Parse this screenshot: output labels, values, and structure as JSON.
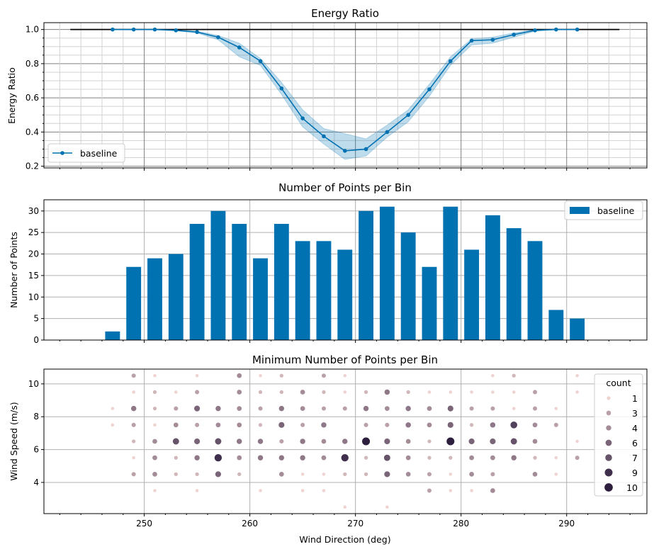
{
  "chart_data": [
    {
      "type": "line",
      "title": "Energy Ratio",
      "xlabel": "",
      "ylabel": "Energy Ratio",
      "xlim": [
        240.5,
        297.6
      ],
      "ylim": [
        0.19,
        1.04
      ],
      "yticks": [
        "0.2",
        "0.4",
        "0.6",
        "0.8",
        "1.0"
      ],
      "grid": "major+minor",
      "legend": {
        "position": "lower-left",
        "entries": [
          "baseline"
        ]
      },
      "reference_line": {
        "y": 1.0,
        "x_range": [
          243,
          295
        ],
        "color": "#000000"
      },
      "series": [
        {
          "name": "baseline",
          "color": "#0072b2",
          "x": [
            247,
            249,
            251,
            253,
            255,
            257,
            259,
            261,
            263,
            265,
            267,
            269,
            271,
            273,
            275,
            277,
            279,
            281,
            283,
            285,
            287,
            289,
            291
          ],
          "y": [
            1.0,
            1.0,
            1.0,
            0.995,
            0.985,
            0.955,
            0.895,
            0.815,
            0.655,
            0.48,
            0.375,
            0.29,
            0.3,
            0.4,
            0.5,
            0.65,
            0.815,
            0.935,
            0.94,
            0.97,
            0.995,
            1.0,
            1.0
          ],
          "ci_lower": [
            1.0,
            1.0,
            1.0,
            0.993,
            0.98,
            0.94,
            0.84,
            0.79,
            0.62,
            0.43,
            0.33,
            0.24,
            0.26,
            0.37,
            0.46,
            0.61,
            0.79,
            0.91,
            0.92,
            0.955,
            0.99,
            1.0,
            1.0
          ],
          "ci_upper": [
            1.0,
            1.0,
            1.0,
            0.997,
            0.99,
            0.965,
            0.92,
            0.83,
            0.69,
            0.53,
            0.42,
            0.39,
            0.36,
            0.44,
            0.53,
            0.68,
            0.84,
            0.945,
            0.955,
            0.98,
            1.0,
            1.0,
            1.0
          ]
        }
      ]
    },
    {
      "type": "bar",
      "title": "Number of Points per Bin",
      "xlabel": "",
      "ylabel": "Number of Points",
      "xlim": [
        240.5,
        297.6
      ],
      "ylim": [
        0,
        32.6
      ],
      "yticks": [
        "0",
        "5",
        "10",
        "15",
        "20",
        "25",
        "30"
      ],
      "grid": "major",
      "legend": {
        "position": "top-right",
        "entries": [
          "baseline"
        ]
      },
      "series": [
        {
          "name": "baseline",
          "color": "#0072b2",
          "x": [
            247,
            249,
            251,
            253,
            255,
            257,
            259,
            261,
            263,
            265,
            267,
            269,
            271,
            273,
            275,
            277,
            279,
            281,
            283,
            285,
            287,
            289,
            291
          ],
          "values": [
            2,
            17,
            19,
            20,
            27,
            30,
            27,
            19,
            27,
            23,
            23,
            21,
            30,
            31,
            25,
            17,
            31,
            21,
            29,
            26,
            23,
            7,
            5
          ]
        }
      ]
    },
    {
      "type": "scatter",
      "title": "Minimum Number of Points per Bin",
      "xlabel": "Wind Direction (deg)",
      "ylabel": "Wind Speed (m/s)",
      "xlim": [
        240.5,
        297.6
      ],
      "ylim": [
        2.1,
        10.9
      ],
      "xticks": [
        "250",
        "260",
        "270",
        "280",
        "290"
      ],
      "yticks": [
        "4",
        "6",
        "8",
        "10"
      ],
      "grid": "major",
      "legend": {
        "position": "top-right",
        "title": "count",
        "entries": [
          "1",
          "3",
          "4",
          "6",
          "7",
          "9",
          "10"
        ]
      },
      "rows": [
        {
          "y": 10.5,
          "x": [
            249,
            251,
            255,
            259,
            261,
            263,
            267,
            269,
            283,
            285,
            291
          ],
          "count": [
            3,
            1,
            1,
            4,
            1,
            2,
            3,
            1,
            1,
            2,
            1
          ]
        },
        {
          "y": 9.5,
          "x": [
            249,
            251,
            253,
            255,
            259,
            261,
            263,
            265,
            267,
            269,
            271,
            273,
            275,
            277,
            279,
            281,
            283,
            285,
            287,
            291
          ],
          "count": [
            1,
            2,
            1,
            3,
            4,
            2,
            2,
            4,
            2,
            1,
            2,
            5,
            2,
            1,
            1,
            1,
            1,
            1,
            3,
            1
          ]
        },
        {
          "y": 8.5,
          "x": [
            247,
            249,
            251,
            253,
            255,
            257,
            259,
            261,
            263,
            265,
            267,
            269,
            271,
            273,
            275,
            277,
            279,
            281,
            283,
            285,
            287,
            289
          ],
          "count": [
            1,
            5,
            2,
            3,
            6,
            5,
            4,
            3,
            5,
            4,
            3,
            3,
            5,
            4,
            5,
            4,
            6,
            3,
            3,
            1,
            3,
            1
          ]
        },
        {
          "y": 7.5,
          "x": [
            247,
            249,
            251,
            253,
            255,
            257,
            259,
            261,
            263,
            265,
            267,
            271,
            273,
            275,
            277,
            279,
            281,
            283,
            285,
            287,
            289
          ],
          "count": [
            1,
            3,
            1,
            4,
            3,
            4,
            4,
            2,
            6,
            3,
            5,
            3,
            3,
            5,
            4,
            6,
            2,
            5,
            8,
            4,
            3
          ]
        },
        {
          "y": 6.5,
          "x": [
            249,
            251,
            253,
            255,
            257,
            259,
            261,
            263,
            265,
            267,
            269,
            271,
            273,
            275,
            277,
            279,
            281,
            283,
            285,
            287,
            291
          ],
          "count": [
            2,
            4,
            7,
            6,
            7,
            5,
            5,
            3,
            5,
            4,
            5,
            10,
            6,
            4,
            2,
            10,
            6,
            6,
            7,
            4,
            1
          ]
        },
        {
          "y": 5.5,
          "x": [
            249,
            251,
            253,
            255,
            257,
            259,
            261,
            263,
            265,
            267,
            269,
            271,
            273,
            275,
            277,
            279,
            281,
            283,
            285,
            287,
            289,
            291
          ],
          "count": [
            1,
            4,
            2,
            5,
            9,
            4,
            5,
            5,
            5,
            4,
            9,
            2,
            7,
            4,
            2,
            2,
            4,
            4,
            5,
            2,
            1,
            3
          ]
        },
        {
          "y": 4.5,
          "x": [
            249,
            251,
            253,
            255,
            257,
            259,
            263,
            265,
            267,
            269,
            271,
            273,
            275,
            277,
            279,
            281,
            283,
            287,
            289
          ],
          "count": [
            3,
            4,
            2,
            2,
            6,
            2,
            4,
            1,
            1,
            2,
            2,
            6,
            4,
            3,
            1,
            4,
            3,
            4,
            1
          ]
        },
        {
          "y": 3.5,
          "x": [
            251,
            255,
            261,
            265,
            267,
            277,
            279,
            281,
            283
          ],
          "count": [
            1,
            1,
            1,
            1,
            1,
            3,
            1,
            1,
            4
          ]
        },
        {
          "y": 2.5,
          "x": [
            269,
            273
          ],
          "count": [
            1,
            1
          ]
        }
      ]
    }
  ]
}
